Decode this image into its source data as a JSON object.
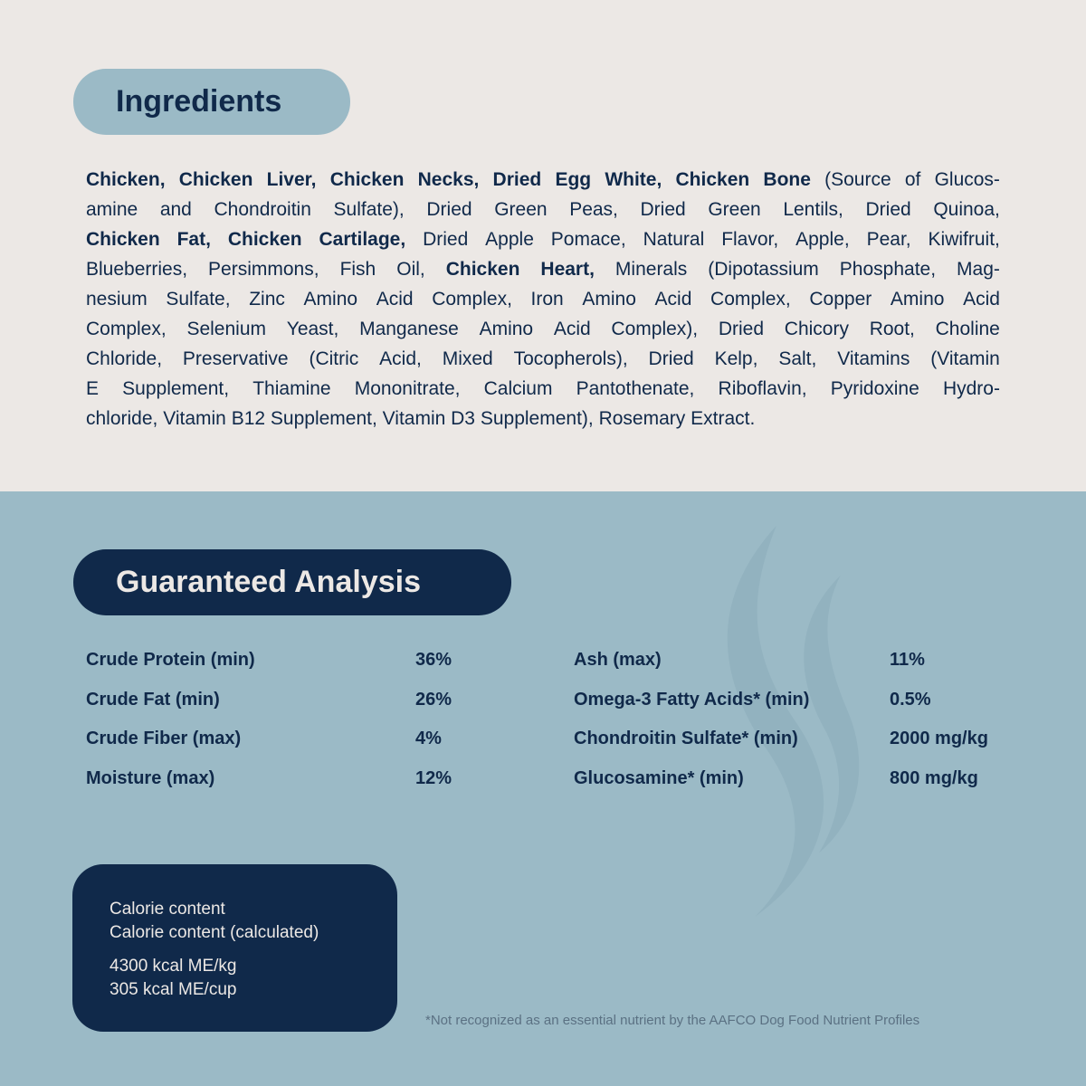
{
  "ingredients": {
    "title": "Ingredients",
    "lines": [
      [
        {
          "t": "Chicken, Chicken Liver, Chicken Necks, Dried Egg White, Chicken Bone",
          "b": true
        },
        {
          "t": " (Source of Glucos-",
          "b": false
        }
      ],
      [
        {
          "t": "amine and Chondroitin Sulfate), Dried Green Peas, Dried Green Lentils, Dried Quinoa,",
          "b": false
        }
      ],
      [
        {
          "t": "Chicken Fat, Chicken Cartilage,",
          "b": true
        },
        {
          "t": " Dried Apple Pomace, Natural Flavor, Apple, Pear, Kiwifruit,",
          "b": false
        }
      ],
      [
        {
          "t": "Blueberries, Persimmons, Fish Oil, ",
          "b": false
        },
        {
          "t": "Chicken Heart,",
          "b": true
        },
        {
          "t": " Minerals (Dipotassium Phosphate, Mag-",
          "b": false
        }
      ],
      [
        {
          "t": "nesium Sulfate, Zinc Amino Acid Complex, Iron Amino Acid Complex, Copper Amino Acid",
          "b": false
        }
      ],
      [
        {
          "t": "Complex, Selenium Yeast, Manganese Amino Acid Complex), Dried Chicory Root, Choline",
          "b": false
        }
      ],
      [
        {
          "t": "Chloride, Preservative (Citric Acid, Mixed Tocopherols), Dried Kelp, Salt, Vitamins (Vitamin",
          "b": false
        }
      ],
      [
        {
          "t": "E Supplement, Thiamine Mononitrate, Calcium Pantothenate, Riboflavin, Pyridoxine Hydro-",
          "b": false
        }
      ],
      [
        {
          "t": "chloride, Vitamin B12 Supplement, Vitamin D3 Supplement), Rosemary Extract.",
          "b": false
        }
      ]
    ]
  },
  "analysis": {
    "title": "Guaranteed Analysis",
    "left": [
      {
        "label": "Crude Protein (min)",
        "value": "36%"
      },
      {
        "label": "Crude Fat (min)",
        "value": "26%"
      },
      {
        "label": "Crude Fiber (max)",
        "value": "4%"
      },
      {
        "label": "Moisture (max)",
        "value": "12%"
      }
    ],
    "right": [
      {
        "label": "Ash (max)",
        "value": "11%"
      },
      {
        "label": "Omega-3 Fatty Acids* (min)",
        "value": "0.5%"
      },
      {
        "label": "Chondroitin Sulfate* (min)",
        "value": "2000 mg/kg"
      },
      {
        "label": "Glucosamine* (min)",
        "value": "800 mg/kg"
      }
    ]
  },
  "calorie": {
    "line1": "Calorie content",
    "line2": "Calorie content (calculated)",
    "value1": "4300 kcal ME/kg",
    "value2": "305 kcal ME/cup"
  },
  "footnote": "*Not recognized as an essential nutrient by the AAFCO Dog Food Nutrient Profiles",
  "colors": {
    "cream": "#ece8e5",
    "blue": "#9bbac6",
    "navy": "#10294a"
  },
  "watermark_icon": "flame-icon"
}
